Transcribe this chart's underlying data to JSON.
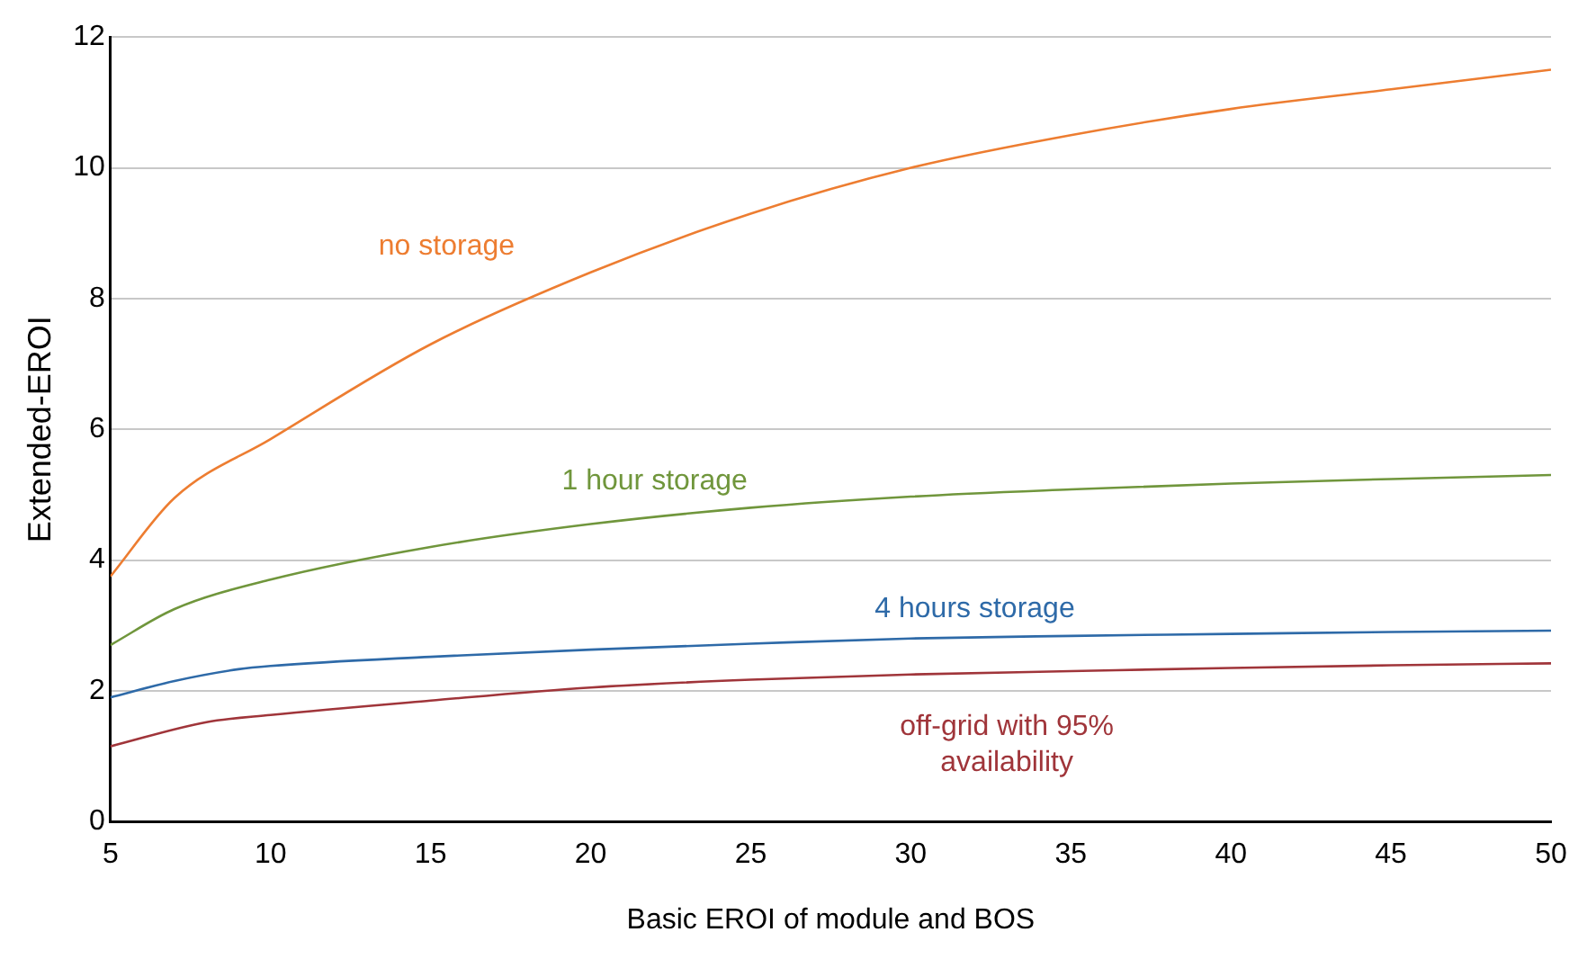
{
  "chart_data": {
    "type": "line",
    "xlabel": "Basic EROI of module and BOS",
    "ylabel": "Extended-EROI",
    "xlim": [
      5,
      50
    ],
    "xticks": [
      5,
      10,
      15,
      20,
      25,
      30,
      35,
      40,
      45,
      50
    ],
    "ylim": [
      0,
      12
    ],
    "yticks": [
      0,
      2,
      4,
      6,
      8,
      10,
      12
    ],
    "grid": "y",
    "marker": "none",
    "line_style": "solid",
    "series": [
      {
        "name": "no storage",
        "color": "#ed7d31",
        "x": [
          5,
          7,
          10,
          15,
          20,
          25,
          30,
          35,
          40,
          45,
          50
        ],
        "values": [
          3.75,
          4.95,
          5.85,
          7.3,
          8.4,
          9.3,
          10.0,
          10.5,
          10.9,
          11.2,
          11.5
        ]
      },
      {
        "name": "1 hour storage",
        "color": "#70963c",
        "x": [
          5,
          7,
          10,
          15,
          20,
          25,
          30,
          35,
          40,
          45,
          50
        ],
        "values": [
          2.7,
          3.25,
          3.7,
          4.2,
          4.55,
          4.8,
          4.97,
          5.08,
          5.17,
          5.24,
          5.3
        ]
      },
      {
        "name": "4 hours storage",
        "color": "#2e6aa8",
        "x": [
          5,
          7,
          9,
          10,
          15,
          20,
          25,
          30,
          35,
          40,
          45,
          50
        ],
        "values": [
          1.9,
          2.15,
          2.33,
          2.38,
          2.52,
          2.63,
          2.72,
          2.8,
          2.84,
          2.87,
          2.9,
          2.92
        ]
      },
      {
        "name": "off-grid with 95% availability",
        "color": "#a0353a",
        "x": [
          5,
          8,
          10,
          15,
          20,
          25,
          30,
          35,
          40,
          45,
          50
        ],
        "values": [
          1.15,
          1.52,
          1.63,
          1.85,
          2.05,
          2.17,
          2.25,
          2.3,
          2.35,
          2.39,
          2.42
        ]
      }
    ]
  }
}
